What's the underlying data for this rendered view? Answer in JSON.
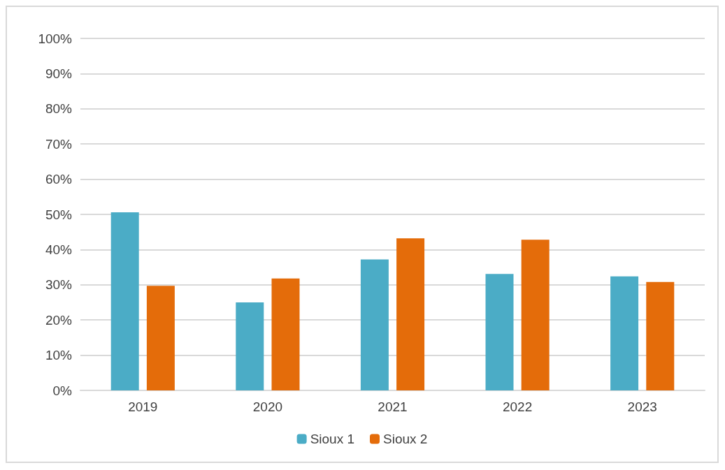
{
  "chart_data": {
    "type": "bar",
    "categories": [
      "2019",
      "2020",
      "2021",
      "2022",
      "2023"
    ],
    "series": [
      {
        "name": "Sioux 1",
        "color": "#4bacc6",
        "values": [
          50.6,
          25.0,
          37.2,
          33.1,
          32.4
        ]
      },
      {
        "name": "Sioux 2",
        "color": "#e46c0a",
        "values": [
          29.7,
          31.8,
          43.2,
          42.8,
          30.8
        ]
      }
    ],
    "ylim": [
      0,
      100
    ],
    "yticks": [
      {
        "value": 0,
        "label": "0%"
      },
      {
        "value": 10,
        "label": "10%"
      },
      {
        "value": 20,
        "label": "20%"
      },
      {
        "value": 30,
        "label": "30%"
      },
      {
        "value": 40,
        "label": "40%"
      },
      {
        "value": 50,
        "label": "50%"
      },
      {
        "value": 60,
        "label": "60%"
      },
      {
        "value": 70,
        "label": "70%"
      },
      {
        "value": 80,
        "label": "80%"
      },
      {
        "value": 90,
        "label": "90%"
      },
      {
        "value": 100,
        "label": "100%"
      }
    ],
    "grid": "y",
    "legend": "bottom"
  }
}
